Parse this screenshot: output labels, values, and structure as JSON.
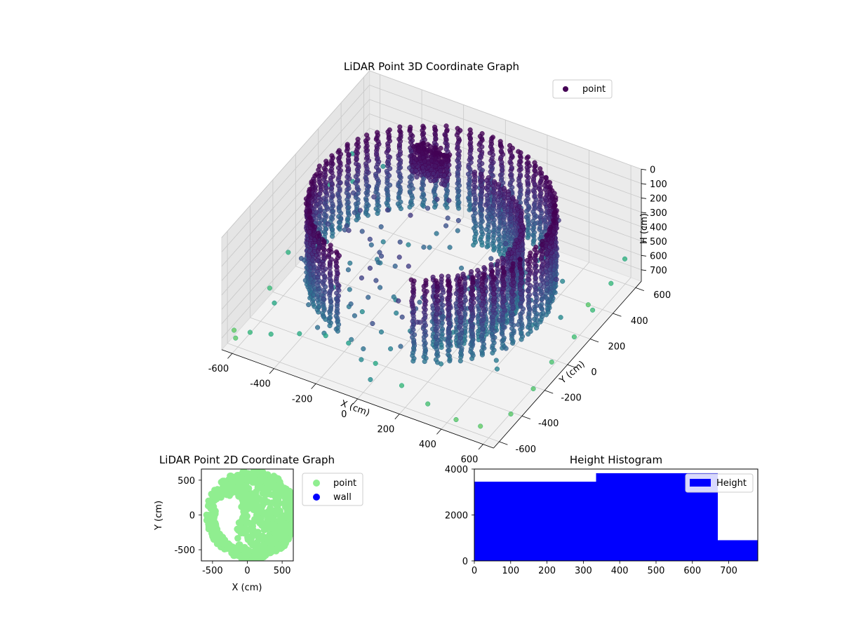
{
  "figure": {
    "background": "#ffffff"
  },
  "chart_data": [
    {
      "type": "scatter",
      "projection": "3d",
      "title": "LiDAR Point 3D Coordinate Graph",
      "xlabel": "X (cm)",
      "ylabel": "Y (cm)",
      "zlabel": "H (cm)",
      "xlim": [
        -650,
        650
      ],
      "ylim": [
        -650,
        650
      ],
      "zlim": [
        0,
        780
      ],
      "zaxis_inverted": true,
      "xticks": [
        -600,
        -400,
        -200,
        0,
        200,
        400,
        600
      ],
      "yticks": [
        -600,
        -400,
        -200,
        0,
        200,
        400,
        600
      ],
      "zticks": [
        0,
        100,
        200,
        300,
        400,
        500,
        600,
        700
      ],
      "legend": {
        "entries": [
          "point"
        ],
        "placement": "upper-right"
      },
      "colormap": "viridis",
      "color_by": "height",
      "series": [
        {
          "name": "point",
          "color": "#440154",
          "structure": {
            "wall_ring": {
              "center": [
                0,
                0
              ],
              "radius": 520,
              "h_min": 0,
              "h_max": 560,
              "arc_deg": [
                -70,
                250
              ]
            },
            "inner_arc": {
              "center": [
                0,
                0
              ],
              "radius": 380,
              "h_min": 120,
              "h_max": 620,
              "arc_deg": [
                -60,
                90
              ]
            },
            "dense_cluster": {
              "x": -180,
              "y": 320,
              "h_min": 0,
              "h_max": 200
            }
          },
          "outliers": [
            [
              -640,
              -560,
              720
            ],
            [
              -600,
              -620,
              700
            ],
            [
              -520,
              -640,
              600
            ],
            [
              -420,
              -640,
              560
            ],
            [
              -300,
              -610,
              520
            ],
            [
              -180,
              -600,
              480
            ],
            [
              -60,
              -620,
              450
            ],
            [
              80,
              -640,
              500
            ],
            [
              200,
              -630,
              600
            ],
            [
              330,
              -640,
              650
            ],
            [
              460,
              -630,
              700
            ],
            [
              560,
              -600,
              720
            ],
            [
              640,
              -480,
              700
            ],
            [
              650,
              -300,
              680
            ],
            [
              640,
              -120,
              660
            ],
            [
              650,
              60,
              640
            ],
            [
              640,
              240,
              620
            ],
            [
              630,
              420,
              600
            ],
            [
              620,
              560,
              560
            ],
            [
              -650,
              100,
              520
            ],
            [
              -650,
              300,
              480
            ],
            [
              -640,
              480,
              420
            ],
            [
              -620,
              -120,
              560
            ],
            [
              -600,
              -320,
              620
            ],
            [
              -480,
              -500,
              500
            ],
            [
              -360,
              -420,
              520
            ],
            [
              -260,
              -360,
              480
            ],
            [
              -140,
              -300,
              460
            ],
            [
              50,
              -260,
              500
            ],
            [
              150,
              -200,
              520
            ],
            [
              280,
              -150,
              560
            ],
            [
              380,
              -80,
              600
            ],
            [
              460,
              40,
              640
            ],
            [
              520,
              180,
              680
            ],
            [
              570,
              330,
              700
            ],
            [
              420,
              380,
              660
            ],
            [
              300,
              440,
              620
            ],
            [
              -380,
              520,
              300
            ],
            [
              -460,
              420,
              360
            ],
            [
              -540,
              300,
              400
            ],
            [
              -580,
              140,
              420
            ],
            [
              -560,
              -40,
              460
            ],
            [
              -500,
              -200,
              480
            ],
            [
              -440,
              -300,
              500
            ]
          ]
        }
      ]
    },
    {
      "type": "scatter",
      "title": "LiDAR Point 2D Coordinate Graph",
      "xlabel": "X (cm)",
      "ylabel": "Y (cm)",
      "xlim": [
        -660,
        660
      ],
      "ylim": [
        -660,
        660
      ],
      "xticks": [
        -500,
        0,
        500
      ],
      "yticks": [
        -500,
        0,
        500
      ],
      "legend": {
        "entries": [
          "point",
          "wall"
        ],
        "placement": "outside-right"
      },
      "series": [
        {
          "name": "point",
          "color": "#90ee90",
          "structure": {
            "disc_center": [
              60,
              0
            ],
            "disc_radius": 560,
            "ring_radius": 620
          }
        },
        {
          "name": "wall",
          "color": "#0000ff",
          "points": []
        }
      ]
    },
    {
      "type": "bar",
      "title": "Height Histogram",
      "xlabel": "",
      "ylabel": "",
      "xlim": [
        0,
        780
      ],
      "ylim": [
        0,
        4000
      ],
      "xticks": [
        0,
        100,
        200,
        300,
        400,
        500,
        600,
        700
      ],
      "yticks": [
        0,
        2000,
        4000
      ],
      "legend": {
        "entries": [
          "Height"
        ],
        "placement": "upper-right"
      },
      "series": [
        {
          "name": "Height",
          "color": "#0000ff",
          "bins": [
            0,
            335,
            670,
            780
          ],
          "values": [
            3450,
            3820,
            900
          ]
        }
      ]
    }
  ]
}
